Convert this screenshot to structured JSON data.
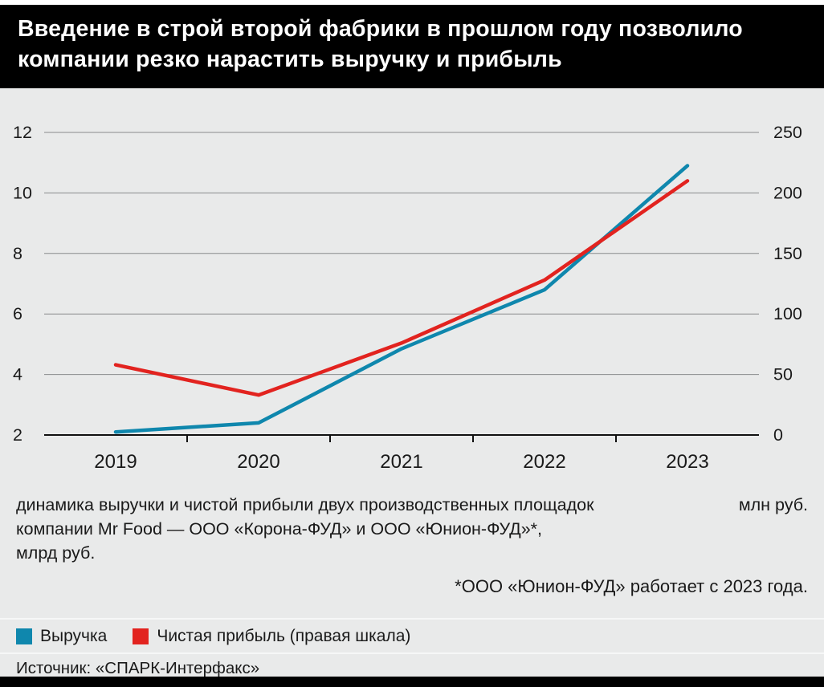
{
  "header": {
    "title": "Введение в строй второй фабрики в прошлом году позволило компании резко нарастить выручку и прибыль"
  },
  "chart_data": {
    "type": "line",
    "title": "Введение в строй второй фабрики в прошлом году позволило компании резко нарастить выручку и прибыль",
    "categories": [
      "2019",
      "2020",
      "2021",
      "2022",
      "2023"
    ],
    "series": [
      {
        "name": "Выручка",
        "axis": "left",
        "unit": "млрд руб.",
        "color": "#0f87ad",
        "values": [
          2.1,
          2.4,
          4.85,
          6.8,
          10.9
        ]
      },
      {
        "name": "Чистая прибыль (правая шкала)",
        "axis": "right",
        "unit": "млн руб.",
        "color": "#e2231f",
        "values": [
          58,
          33,
          76,
          128,
          210
        ]
      }
    ],
    "left_axis": {
      "min": 2,
      "max": 12,
      "ticks": [
        2,
        4,
        6,
        8,
        10,
        12
      ],
      "unit": "млрд руб."
    },
    "right_axis": {
      "min": 0,
      "max": 250,
      "ticks": [
        0,
        50,
        100,
        150,
        200,
        250
      ],
      "unit": "млн руб."
    },
    "grid": true,
    "legend_position": "bottom"
  },
  "caption": {
    "line1": "динамика выручки и чистой прибыли двух производственных площадок",
    "line2": "компании Mr Food — ООО «Корона-ФУД» и ООО «Юнион-ФУД»*,",
    "line3": "млрд руб.",
    "right_unit": "млн руб.",
    "footnote": "*ООО «Юнион-ФУД» работает с 2023 года."
  },
  "legend": {
    "items": [
      {
        "label": "Выручка",
        "color": "#0f87ad"
      },
      {
        "label": "Чистая прибыль (правая шкала)",
        "color": "#e2231f"
      }
    ]
  },
  "source": {
    "text": "Источник: «СПАРК-Интерфакс»"
  },
  "colors": {
    "background": "#e9eaea",
    "header_bg": "#000000",
    "revenue_line": "#0f87ad",
    "profit_line": "#e2231f",
    "grid": "#898b8c",
    "axis": "#111111",
    "text": "#1a1a1a"
  }
}
